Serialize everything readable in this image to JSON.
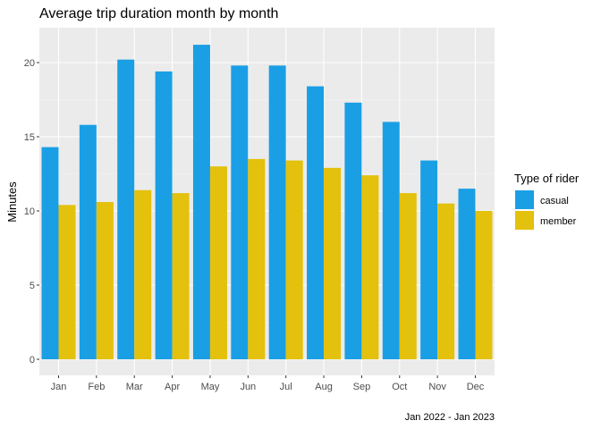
{
  "chart_data": {
    "type": "bar",
    "title": "Average trip duration month by month",
    "xlabel": "",
    "ylabel": "Minutes",
    "caption": "Jan 2022 - Jan 2023",
    "categories": [
      "Jan",
      "Feb",
      "Mar",
      "Apr",
      "May",
      "Jun",
      "Jul",
      "Aug",
      "Sep",
      "Oct",
      "Nov",
      "Dec"
    ],
    "y_ticks": [
      "0",
      "5",
      "10",
      "15",
      "20"
    ],
    "ylim": [
      0,
      22.2
    ],
    "grid": true,
    "legend": {
      "title": "Type of rider",
      "position": "right"
    },
    "series": [
      {
        "name": "casual",
        "color": "#1a9fe5",
        "values": [
          14.3,
          15.8,
          20.2,
          19.4,
          21.2,
          19.8,
          19.8,
          18.4,
          17.3,
          16.0,
          13.4,
          11.5
        ]
      },
      {
        "name": "member",
        "color": "#e3c10c",
        "values": [
          10.4,
          10.6,
          11.4,
          11.2,
          13.0,
          13.5,
          13.4,
          12.9,
          12.4,
          11.2,
          10.5,
          10.0
        ]
      }
    ]
  }
}
